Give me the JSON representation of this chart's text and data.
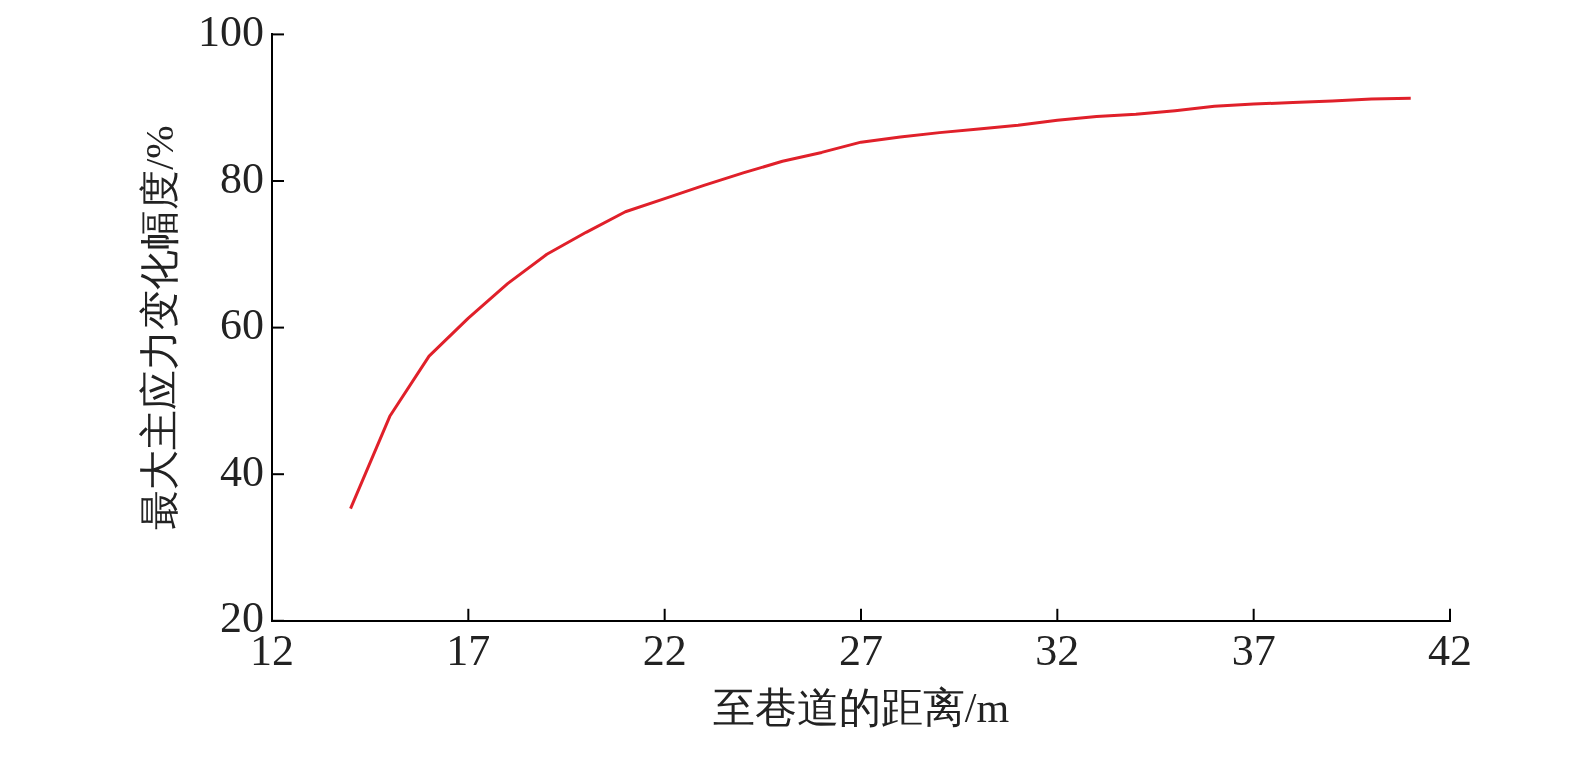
{
  "chart_data": {
    "type": "line",
    "xlabel": "至巷道的距离/m",
    "ylabel": "最大主应力变化幅度/%",
    "x": [
      14,
      15,
      16,
      17,
      18,
      19,
      20,
      21,
      22,
      23,
      24,
      25,
      26,
      27,
      28,
      29,
      30,
      31,
      32,
      33,
      34,
      35,
      36,
      37,
      38,
      39,
      40,
      41
    ],
    "series": [
      {
        "color": "#e0202a",
        "values": [
          35.3,
          47.9,
          56.1,
          61.3,
          66.0,
          70.0,
          73.0,
          75.8,
          77.6,
          79.4,
          81.1,
          82.7,
          83.9,
          85.3,
          86.0,
          86.6,
          87.1,
          87.6,
          88.3,
          88.8,
          89.1,
          89.6,
          90.2,
          90.5,
          90.7,
          90.9,
          91.2,
          91.3
        ]
      }
    ],
    "xlim": [
      12,
      42
    ],
    "xticks": [
      12,
      17,
      22,
      27,
      32,
      37,
      42
    ],
    "ylim": [
      20,
      100
    ],
    "yticks": [
      20,
      40,
      60,
      80,
      100
    ],
    "grid": false,
    "legend": false,
    "marker": "none",
    "line_style": "solid"
  }
}
